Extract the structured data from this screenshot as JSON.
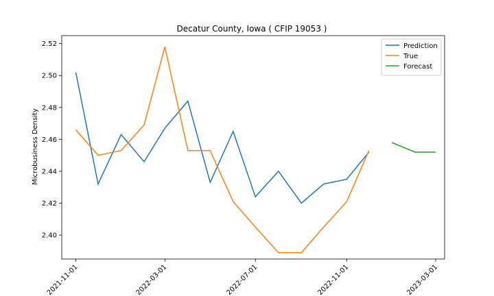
{
  "chart_data": {
    "type": "line",
    "title": "Decatur County, Iowa ( CFIP 19053 )",
    "xlabel": "",
    "ylabel": "Microbusiness Density",
    "ylim": [
      2.385,
      2.525
    ],
    "xlim": [
      "2021-10-13",
      "2023-03-13"
    ],
    "y_ticks": [
      2.4,
      2.42,
      2.44,
      2.46,
      2.48,
      2.5,
      2.52
    ],
    "y_tick_labels": [
      "2.40",
      "2.42",
      "2.44",
      "2.46",
      "2.48",
      "2.50",
      "2.52"
    ],
    "x_ticks": [
      "2021-11-01",
      "2022-03-01",
      "2022-07-01",
      "2022-11-01",
      "2023-03-01"
    ],
    "legend_position": "top-right",
    "grid": false,
    "series": [
      {
        "name": "Prediction",
        "color": "#1f77b4",
        "x": [
          "2021-11-01",
          "2021-12-01",
          "2022-01-01",
          "2022-02-01",
          "2022-03-01",
          "2022-04-01",
          "2022-05-01",
          "2022-06-01",
          "2022-07-01",
          "2022-08-01",
          "2022-09-01",
          "2022-10-01",
          "2022-11-01",
          "2022-12-01"
        ],
        "values": [
          2.502,
          2.432,
          2.463,
          2.446,
          2.467,
          2.484,
          2.433,
          2.465,
          2.424,
          2.44,
          2.42,
          2.432,
          2.435,
          2.452
        ]
      },
      {
        "name": "True",
        "color": "#ff7f0e",
        "x": [
          "2021-11-01",
          "2021-12-01",
          "2022-01-01",
          "2022-02-01",
          "2022-03-01",
          "2022-04-01",
          "2022-05-01",
          "2022-06-01",
          "2022-07-01",
          "2022-08-01",
          "2022-09-01",
          "2022-10-01",
          "2022-11-01",
          "2022-12-01"
        ],
        "values": [
          2.466,
          2.45,
          2.453,
          2.469,
          2.518,
          2.453,
          2.453,
          2.421,
          2.405,
          2.389,
          2.389,
          2.405,
          2.421,
          2.453
        ]
      },
      {
        "name": "Forecast",
        "color": "#2ca02c",
        "x": [
          "2023-01-01",
          "2023-02-01",
          "2023-03-01"
        ],
        "values": [
          2.458,
          2.452,
          2.452
        ]
      }
    ]
  }
}
